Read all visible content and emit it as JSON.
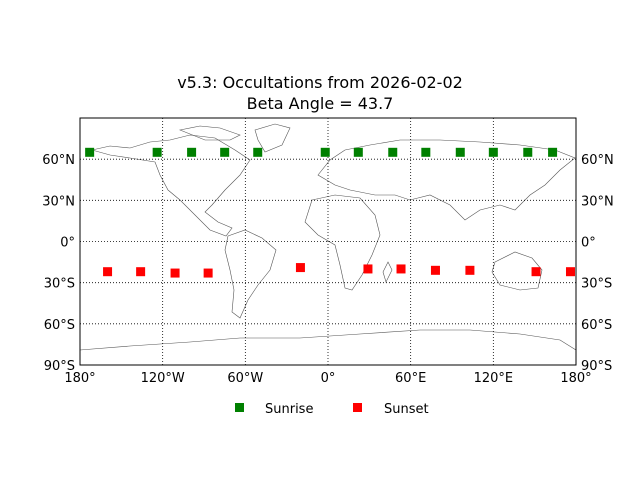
{
  "chart_data": {
    "type": "scatter",
    "title": "v5.3: Occultations from 2026-02-02",
    "subtitle": "Beta Angle = 43.7",
    "xlabel": "",
    "ylabel": "",
    "xlim": [
      -180,
      180
    ],
    "ylim": [
      -90,
      90
    ],
    "x_ticks": [
      "180°",
      "120°W",
      "60°W",
      "0°",
      "60°E",
      "120°E",
      "180°"
    ],
    "y_ticks_left": [
      "60°N",
      "30°N",
      "0°",
      "30°S",
      "60°S",
      "90°S"
    ],
    "y_ticks_right": [
      "60°N",
      "30°N",
      "0°",
      "30°S",
      "60°S",
      "90°S"
    ],
    "grid": "dotted",
    "legend_position": "bottom-center",
    "background": "world coastline map (cylindrical projection)",
    "series": [
      {
        "name": "Sunrise",
        "color": "#008000",
        "marker": "square",
        "points": [
          {
            "lon": -173,
            "lat": 65
          },
          {
            "lon": -124,
            "lat": 65
          },
          {
            "lon": -99,
            "lat": 65
          },
          {
            "lon": -75,
            "lat": 65
          },
          {
            "lon": -51,
            "lat": 65
          },
          {
            "lon": -2,
            "lat": 65
          },
          {
            "lon": 22,
            "lat": 65
          },
          {
            "lon": 47,
            "lat": 65
          },
          {
            "lon": 71,
            "lat": 65
          },
          {
            "lon": 96,
            "lat": 65
          },
          {
            "lon": 120,
            "lat": 65
          },
          {
            "lon": 145,
            "lat": 65
          },
          {
            "lon": 163,
            "lat": 65
          }
        ]
      },
      {
        "name": "Sunset",
        "color": "#ff0000",
        "marker": "square",
        "points": [
          {
            "lon": -160,
            "lat": -22
          },
          {
            "lon": -136,
            "lat": -22
          },
          {
            "lon": -111,
            "lat": -23
          },
          {
            "lon": -87,
            "lat": -23
          },
          {
            "lon": -20,
            "lat": -19
          },
          {
            "lon": 29,
            "lat": -20
          },
          {
            "lon": 53,
            "lat": -20
          },
          {
            "lon": 78,
            "lat": -21
          },
          {
            "lon": 103,
            "lat": -21
          },
          {
            "lon": 151,
            "lat": -22
          },
          {
            "lon": 176,
            "lat": -22
          }
        ]
      }
    ]
  },
  "legend": {
    "sunrise": "Sunrise",
    "sunset": "Sunset"
  }
}
